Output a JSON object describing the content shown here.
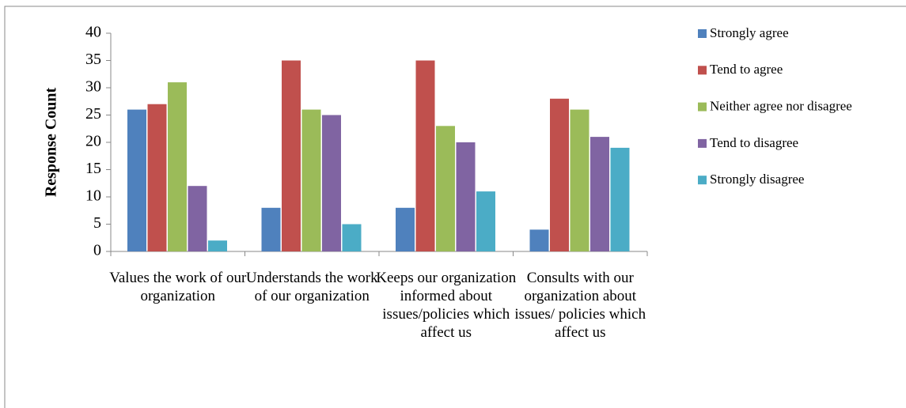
{
  "chart_data": {
    "type": "bar",
    "y_label": "Response Count",
    "categories": [
      "Values the work of our organization",
      "Understands the work of our organization",
      "Keeps our organization informed about issues/policies which affect us",
      "Consults with our organization about issues/ policies which affect us"
    ],
    "series": [
      {
        "name": "Strongly agree",
        "color": "#4f81bd",
        "values": [
          26,
          8,
          8,
          4
        ]
      },
      {
        "name": "Tend to agree",
        "color": "#c0504d",
        "values": [
          27,
          35,
          35,
          28
        ]
      },
      {
        "name": "Neither agree nor disagree",
        "color": "#9bbb59",
        "values": [
          31,
          26,
          23,
          26
        ]
      },
      {
        "name": "Tend to disagree",
        "color": "#8064a2",
        "values": [
          12,
          25,
          20,
          21
        ]
      },
      {
        "name": "Strongly disagree",
        "color": "#4bacc6",
        "values": [
          2,
          5,
          11,
          19
        ]
      }
    ],
    "ylim": [
      0,
      40
    ],
    "yticks": [
      0,
      5,
      10,
      15,
      20,
      25,
      30,
      35,
      40
    ],
    "legend": "right"
  }
}
